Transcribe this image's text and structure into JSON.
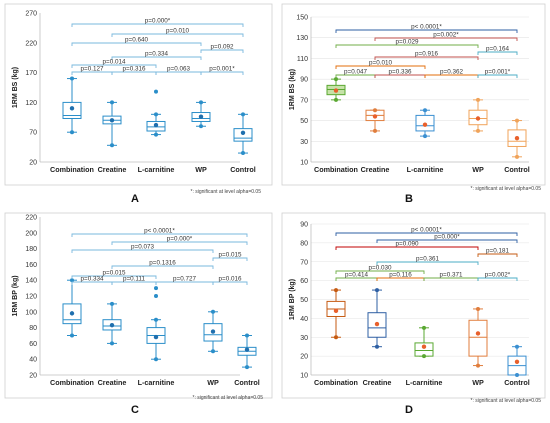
{
  "footnote": "*: significant at level alpha=0.05",
  "chart_data": [
    {
      "type": "box",
      "panel_label": "A",
      "ylabel": "1RM BS (kg)",
      "ylim": [
        20,
        270
      ],
      "yticks": [
        20,
        70,
        120,
        170,
        220,
        270
      ],
      "grid": false,
      "categories": [
        "Combination",
        "Creatine",
        "L-carnitine",
        "WP",
        "Control"
      ],
      "boxes": [
        {
          "whisker_low": 70,
          "q1": 93,
          "median": 98,
          "q3": 120,
          "whisker_high": 160,
          "mean": 110,
          "outliers": []
        },
        {
          "whisker_low": 48,
          "q1": 84,
          "median": 90,
          "q3": 97,
          "whisker_high": 120,
          "mean": 90,
          "outliers": []
        },
        {
          "whisker_low": 66,
          "q1": 72,
          "median": 79,
          "q3": 88,
          "whisker_high": 100,
          "mean": 82,
          "outliers": [
            138
          ]
        },
        {
          "whisker_low": 80,
          "q1": 88,
          "median": 93,
          "q3": 103,
          "whisker_high": 120,
          "mean": 96,
          "outliers": []
        },
        {
          "whisker_low": 35,
          "q1": 55,
          "median": 60,
          "q3": 76,
          "whisker_high": 100,
          "mean": 69,
          "outliers": []
        }
      ],
      "comparisons": [
        {
          "from": 0,
          "to": 4,
          "label": "p=0.000*"
        },
        {
          "from": 1,
          "to": 4,
          "label": "p=0.010"
        },
        {
          "from": 0,
          "to": 3,
          "label": "p=0.640"
        },
        {
          "from": 3,
          "to": 4,
          "label": "p=0.092"
        },
        {
          "from": 1,
          "to": 3,
          "label": "p=0.334"
        },
        {
          "from": 0,
          "to": 2,
          "label": "p=0.014"
        },
        {
          "from": 0,
          "to": 1,
          "label": "p=0.127"
        },
        {
          "from": 1,
          "to": 2,
          "label": "p=0.316"
        },
        {
          "from": 2,
          "to": 3,
          "label": "p=0.063"
        },
        {
          "from": 3,
          "to": 4,
          "label": "p=0.001*"
        }
      ]
    },
    {
      "type": "box",
      "panel_label": "B",
      "ylabel": "1RM BS (kg)",
      "ylim": [
        10,
        150
      ],
      "yticks": [
        10,
        30,
        50,
        70,
        90,
        110,
        130,
        150
      ],
      "grid": true,
      "categories": [
        "Combination",
        "Creatine",
        "L-carnitine",
        "WP",
        "Control"
      ],
      "boxes": [
        {
          "whisker_low": 70,
          "q1": 75,
          "median": 80,
          "q3": 84,
          "whisker_high": 90,
          "mean": 79,
          "outliers": []
        },
        {
          "whisker_low": 40,
          "q1": 50,
          "median": 55,
          "q3": 60,
          "whisker_high": 60,
          "mean": 54,
          "outliers": []
        },
        {
          "whisker_low": 35,
          "q1": 40,
          "median": 45,
          "q3": 55,
          "whisker_high": 60,
          "mean": 46,
          "outliers": []
        },
        {
          "whisker_low": 40,
          "q1": 46,
          "median": 52,
          "q3": 60,
          "whisker_high": 70,
          "mean": 52,
          "outliers": []
        },
        {
          "whisker_low": 15,
          "q1": 25,
          "median": 30,
          "q3": 41,
          "whisker_high": 50,
          "mean": 33,
          "outliers": []
        }
      ],
      "box_colors": [
        "#5aa832",
        "#e07d3c",
        "#3a8fd1",
        "#f0a35a",
        "#f0a35a"
      ],
      "comparisons": [
        {
          "from": 0,
          "to": 4,
          "label": "p< 0.0001*",
          "color": "#2e5fa3"
        },
        {
          "from": 1,
          "to": 4,
          "label": "p=0.002*",
          "color": "#c0504d"
        },
        {
          "from": 0,
          "to": 3,
          "label": "p=0.029",
          "color": "#70ad47"
        },
        {
          "from": 3,
          "to": 4,
          "label": "p=0.164",
          "color": "#4bacc6"
        },
        {
          "from": 1,
          "to": 3,
          "label": "p=0.916",
          "color": "#c0504d"
        },
        {
          "from": 0,
          "to": 2,
          "label": "p=0.010",
          "color": "#e36c09"
        },
        {
          "from": 0,
          "to": 1,
          "label": "p=0.047",
          "color": "#70ad47"
        },
        {
          "from": 1,
          "to": 2,
          "label": "p=0.336",
          "color": "#c0504d"
        },
        {
          "from": 2,
          "to": 3,
          "label": "p=0.362",
          "color": "#e36c09"
        },
        {
          "from": 3,
          "to": 4,
          "label": "p=0.001*",
          "color": "#4bacc6"
        }
      ]
    },
    {
      "type": "box",
      "panel_label": "C",
      "ylabel": "1RM BP (kg)",
      "ylim": [
        20,
        220
      ],
      "yticks": [
        20,
        40,
        60,
        80,
        100,
        120,
        140,
        160,
        180,
        200,
        220
      ],
      "grid": false,
      "categories": [
        "Combination",
        "Creatine",
        "L-carnitine",
        "WP",
        "Control"
      ],
      "boxes": [
        {
          "whisker_low": 70,
          "q1": 85,
          "median": 90,
          "q3": 110,
          "whisker_high": 140,
          "mean": 98,
          "outliers": []
        },
        {
          "whisker_low": 60,
          "q1": 77,
          "median": 82,
          "q3": 90,
          "whisker_high": 110,
          "mean": 83,
          "outliers": []
        },
        {
          "whisker_low": 40,
          "q1": 60,
          "median": 70,
          "q3": 80,
          "whisker_high": 90,
          "mean": 68,
          "outliers": [
            120,
            130
          ]
        },
        {
          "whisker_low": 50,
          "q1": 63,
          "median": 71,
          "q3": 85,
          "whisker_high": 100,
          "mean": 75,
          "outliers": []
        },
        {
          "whisker_low": 30,
          "q1": 45,
          "median": 50,
          "q3": 55,
          "whisker_high": 70,
          "mean": 52,
          "outliers": []
        }
      ],
      "comparisons": [
        {
          "from": 0,
          "to": 4,
          "label": "p< 0.0001*"
        },
        {
          "from": 1,
          "to": 4,
          "label": "p=0.000*"
        },
        {
          "from": 0,
          "to": 3,
          "label": "p=0.073"
        },
        {
          "from": 3,
          "to": 4,
          "label": "p=0.015"
        },
        {
          "from": 1,
          "to": 3,
          "label": "p=0.1316"
        },
        {
          "from": 0,
          "to": 2,
          "label": "p=0.015"
        },
        {
          "from": 0,
          "to": 1,
          "label": "p=0.334"
        },
        {
          "from": 1,
          "to": 2,
          "label": "p=0.111"
        },
        {
          "from": 2,
          "to": 3,
          "label": "p=0.727"
        },
        {
          "from": 3,
          "to": 4,
          "label": "p=0.016"
        }
      ]
    },
    {
      "type": "box",
      "panel_label": "D",
      "ylabel": "1RM BP (kg)",
      "ylim": [
        10,
        90
      ],
      "yticks": [
        10,
        20,
        30,
        40,
        50,
        60,
        70,
        80,
        90
      ],
      "grid": true,
      "categories": [
        "Combination",
        "Creatine",
        "L-carnitine",
        "WP",
        "Control"
      ],
      "boxes": [
        {
          "whisker_low": 30,
          "q1": 41,
          "median": 45,
          "q3": 49,
          "whisker_high": 55,
          "mean": 44,
          "outliers": []
        },
        {
          "whisker_low": 25,
          "q1": 30,
          "median": 35,
          "q3": 43,
          "whisker_high": 55,
          "mean": 37,
          "outliers": []
        },
        {
          "whisker_low": 20,
          "q1": 20,
          "median": 23,
          "q3": 27,
          "whisker_high": 35,
          "mean": 25,
          "outliers": []
        },
        {
          "whisker_low": 15,
          "q1": 20,
          "median": 30,
          "q3": 39,
          "whisker_high": 45,
          "mean": 32,
          "outliers": []
        },
        {
          "whisker_low": 10,
          "q1": 10,
          "median": 15,
          "q3": 20,
          "whisker_high": 25,
          "mean": 17,
          "outliers": []
        }
      ],
      "box_colors": [
        "#c55a11",
        "#2e5fa3",
        "#5aa832",
        "#e07d3c",
        "#3a8fd1"
      ],
      "comparisons": [
        {
          "from": 0,
          "to": 4,
          "label": "p< 0.0001*",
          "color": "#2e5fa3"
        },
        {
          "from": 1,
          "to": 4,
          "label": "p=0.000*",
          "color": "#2e5fa3"
        },
        {
          "from": 0,
          "to": 3,
          "label": "p=0.090",
          "color": "#c00000"
        },
        {
          "from": 3,
          "to": 4,
          "label": "p=0.181",
          "color": "#c55a11"
        },
        {
          "from": 1,
          "to": 3,
          "label": "p=0.361",
          "color": "#4bacc6"
        },
        {
          "from": 0,
          "to": 2,
          "label": "p=0.030",
          "color": "#70ad47"
        },
        {
          "from": 0,
          "to": 1,
          "label": "p=0.414",
          "color": "#70ad47"
        },
        {
          "from": 1,
          "to": 2,
          "label": "p=0.116",
          "color": "#e36c09"
        },
        {
          "from": 2,
          "to": 3,
          "label": "p=0.371",
          "color": "#70ad47"
        },
        {
          "from": 3,
          "to": 4,
          "label": "p=0.002*",
          "color": "#4bacc6"
        }
      ]
    }
  ]
}
